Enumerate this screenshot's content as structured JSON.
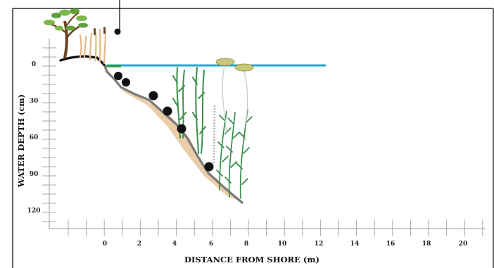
{
  "figure": {
    "y_axis_title": "WATER DEPTH (cm)",
    "x_axis_title": "DISTANCE FROM SHORE (m)",
    "y_tick_labels": [
      "0",
      "30",
      "60",
      "90",
      "120"
    ],
    "x_tick_labels": [
      "0",
      "2",
      "4",
      "6",
      "8",
      "10",
      "12",
      "14",
      "16",
      "18",
      "20"
    ]
  },
  "colors": {
    "water_surface": "#27a4c8",
    "shoreline_band": "#2e9a3a",
    "lake_bottom": "#7a7a7a",
    "sediment": "#e8c49a",
    "plant_green": "#3a8f4a",
    "floating_leaf": "#c9c77a",
    "boulder": "#111111"
  },
  "icons": {
    "shore_tree": "tree-icon",
    "emergent_reeds": "reed-icon",
    "boulders": "boulder-icon",
    "submerged_plants": "aquatic-plant-icon",
    "floating_leaves": "lily-pad-icon"
  }
}
